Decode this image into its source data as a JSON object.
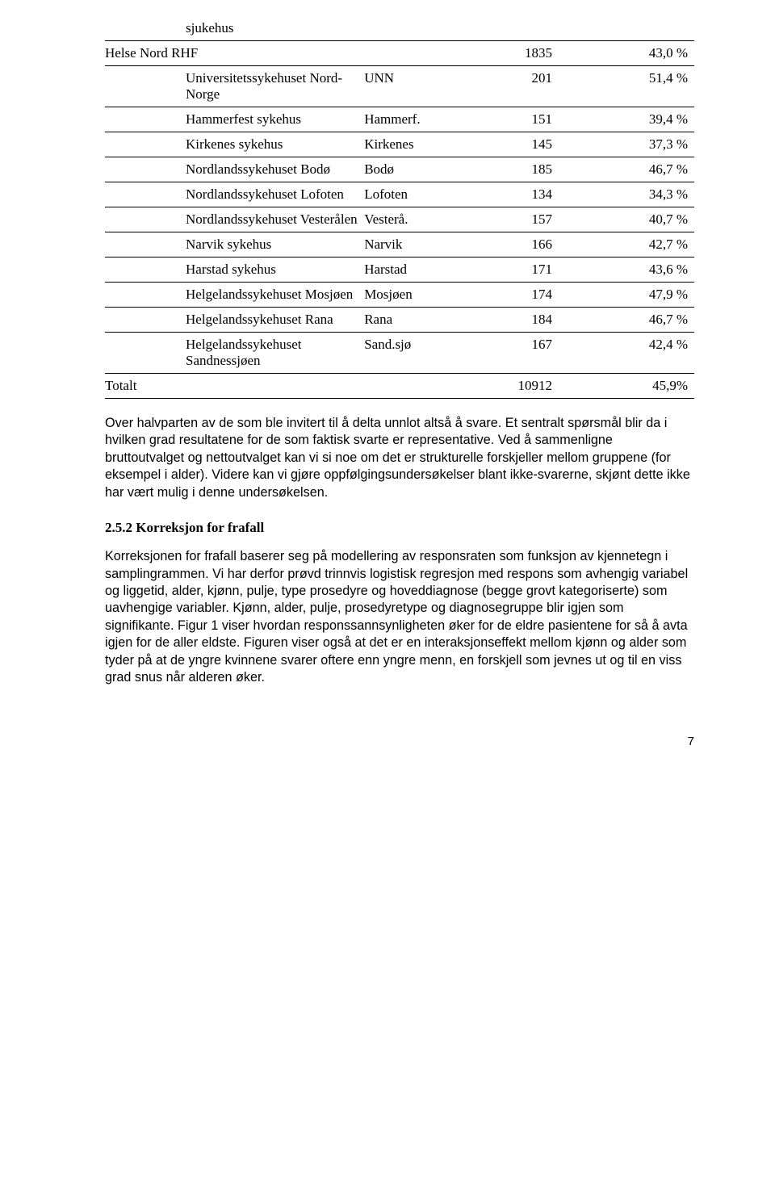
{
  "table": {
    "rows": [
      {
        "name": "sjukehus",
        "abbr": "",
        "num": "",
        "pct": "",
        "indent": true
      },
      {
        "name": "Helse Nord RHF",
        "abbr": "",
        "num": "1835",
        "pct": "43,0 %",
        "indent": false
      },
      {
        "name": "Universitetssykehuset Nord-Norge",
        "abbr": "UNN",
        "num": "201",
        "pct": "51,4 %",
        "indent": true
      },
      {
        "name": "Hammerfest sykehus",
        "abbr": "Hammerf.",
        "num": "151",
        "pct": "39,4 %",
        "indent": true
      },
      {
        "name": "Kirkenes sykehus",
        "abbr": "Kirkenes",
        "num": "145",
        "pct": "37,3 %",
        "indent": true
      },
      {
        "name": "Nordlandssykehuset Bodø",
        "abbr": "Bodø",
        "num": "185",
        "pct": "46,7 %",
        "indent": true
      },
      {
        "name": "Nordlandssykehuset Lofoten",
        "abbr": "Lofoten",
        "num": "134",
        "pct": "34,3 %",
        "indent": true
      },
      {
        "name": "Nordlandssykehuset Vesterålen",
        "abbr": "Vesterå.",
        "num": "157",
        "pct": "40,7 %",
        "indent": true
      },
      {
        "name": "Narvik sykehus",
        "abbr": "Narvik",
        "num": "166",
        "pct": "42,7 %",
        "indent": true
      },
      {
        "name": "Harstad sykehus",
        "abbr": "Harstad",
        "num": "171",
        "pct": "43,6 %",
        "indent": true
      },
      {
        "name": "Helgelandssykehuset Mosjøen",
        "abbr": "Mosjøen",
        "num": "174",
        "pct": "47,9 %",
        "indent": true
      },
      {
        "name": "Helgelandssykehuset Rana",
        "abbr": "Rana",
        "num": "184",
        "pct": "46,7 %",
        "indent": true
      },
      {
        "name": "Helgelandssykehuset Sandnessjøen",
        "abbr": "Sand.sjø",
        "num": "167",
        "pct": "42,4 %",
        "indent": true
      },
      {
        "name": "Totalt",
        "abbr": "",
        "num": "10912",
        "pct": "45,9%",
        "indent": false
      }
    ]
  },
  "para1": "Over halvparten av de som ble invitert til å delta unnlot altså å svare. Et sentralt spørsmål blir da i hvilken grad resultatene for de som faktisk svarte er representative. Ved å sammenligne bruttoutvalget og nettoutvalget kan vi si noe om det er strukturelle forskjeller mellom gruppene (for eksempel i alder). Videre kan vi gjøre oppfølgingsundersøkelser blant ikke-svarerne, skjønt dette ikke har vært mulig i denne undersøkelsen.",
  "subhead": "2.5.2 Korreksjon for frafall",
  "para2": "Korreksjonen for frafall baserer seg på modellering av responsraten som funksjon av kjennetegn i samplingrammen. Vi har derfor prøvd trinnvis logistisk regresjon med respons som avhengig variabel og liggetid, alder, kjønn, pulje, type prosedyre og hoveddiagnose (begge grovt kategoriserte) som uavhengige variabler. Kjønn, alder, pulje, prosedyretype og diagnosegruppe blir igjen som signifikante. Figur 1 viser hvordan responssannsynligheten øker for de eldre pasientene for så å avta igjen for de aller eldste. Figuren viser også at det er en interaksjonseffekt mellom kjønn og alder som tyder på at de yngre kvinnene svarer oftere enn yngre menn, en forskjell som jevnes ut og til en viss grad snus når alderen øker.",
  "pageno": "7"
}
